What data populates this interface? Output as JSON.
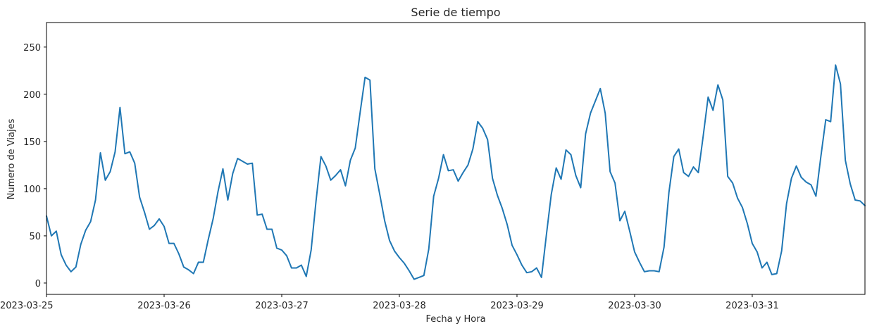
{
  "chart_data": {
    "type": "line",
    "title": "Serie de tiempo",
    "xlabel": "Fecha y Hora",
    "ylabel": "Numero de Viajes",
    "x_ticks": [
      "2023-03-25",
      "2023-03-26",
      "2023-03-27",
      "2023-03-28",
      "2023-03-29",
      "2023-03-30",
      "2023-03-31"
    ],
    "y_ticks": [
      0,
      50,
      100,
      150,
      200,
      250
    ],
    "xlim": [
      "2023-03-25 00:00",
      "2023-03-31 23:00"
    ],
    "ylim": [
      -12,
      276
    ],
    "grid": false,
    "color": "#1f77b4",
    "series": [
      {
        "x": [
          "2023-03-25 00:00",
          "2023-03-25 01:00",
          "2023-03-25 02:00",
          "2023-03-25 03:00",
          "2023-03-25 04:00",
          "2023-03-25 05:00",
          "2023-03-25 06:00",
          "2023-03-25 07:00",
          "2023-03-25 08:00",
          "2023-03-25 09:00",
          "2023-03-25 10:00",
          "2023-03-25 11:00",
          "2023-03-25 12:00",
          "2023-03-25 13:00",
          "2023-03-25 14:00",
          "2023-03-25 15:00",
          "2023-03-25 16:00",
          "2023-03-25 17:00",
          "2023-03-25 18:00",
          "2023-03-25 19:00",
          "2023-03-25 20:00",
          "2023-03-25 21:00",
          "2023-03-25 22:00",
          "2023-03-25 23:00",
          "2023-03-26 00:00",
          "2023-03-26 01:00",
          "2023-03-26 02:00",
          "2023-03-26 03:00",
          "2023-03-26 04:00",
          "2023-03-26 05:00",
          "2023-03-26 06:00",
          "2023-03-26 07:00",
          "2023-03-26 08:00",
          "2023-03-26 09:00",
          "2023-03-26 10:00",
          "2023-03-26 11:00",
          "2023-03-26 12:00",
          "2023-03-26 13:00",
          "2023-03-26 14:00",
          "2023-03-26 15:00",
          "2023-03-26 16:00",
          "2023-03-26 17:00",
          "2023-03-26 18:00",
          "2023-03-26 19:00",
          "2023-03-26 20:00",
          "2023-03-26 21:00",
          "2023-03-26 22:00",
          "2023-03-26 23:00",
          "2023-03-27 00:00",
          "2023-03-27 01:00",
          "2023-03-27 02:00",
          "2023-03-27 03:00",
          "2023-03-27 04:00",
          "2023-03-27 05:00",
          "2023-03-27 06:00",
          "2023-03-27 07:00",
          "2023-03-27 08:00",
          "2023-03-27 09:00",
          "2023-03-27 10:00",
          "2023-03-27 11:00",
          "2023-03-27 12:00",
          "2023-03-27 13:00",
          "2023-03-27 14:00",
          "2023-03-27 15:00",
          "2023-03-27 16:00",
          "2023-03-27 17:00",
          "2023-03-27 18:00",
          "2023-03-27 19:00",
          "2023-03-27 20:00",
          "2023-03-27 21:00",
          "2023-03-27 22:00",
          "2023-03-27 23:00",
          "2023-03-28 00:00",
          "2023-03-28 01:00",
          "2023-03-28 02:00",
          "2023-03-28 03:00",
          "2023-03-28 04:00",
          "2023-03-28 05:00",
          "2023-03-28 06:00",
          "2023-03-28 07:00",
          "2023-03-28 08:00",
          "2023-03-28 09:00",
          "2023-03-28 10:00",
          "2023-03-28 11:00",
          "2023-03-28 12:00",
          "2023-03-28 13:00",
          "2023-03-28 14:00",
          "2023-03-28 15:00",
          "2023-03-28 16:00",
          "2023-03-28 17:00",
          "2023-03-28 18:00",
          "2023-03-28 19:00",
          "2023-03-28 20:00",
          "2023-03-28 21:00",
          "2023-03-28 22:00",
          "2023-03-28 23:00",
          "2023-03-29 00:00",
          "2023-03-29 01:00",
          "2023-03-29 02:00",
          "2023-03-29 03:00",
          "2023-03-29 04:00",
          "2023-03-29 05:00",
          "2023-03-29 06:00",
          "2023-03-29 07:00",
          "2023-03-29 08:00",
          "2023-03-29 09:00",
          "2023-03-29 10:00",
          "2023-03-29 11:00",
          "2023-03-29 12:00",
          "2023-03-29 13:00",
          "2023-03-29 14:00",
          "2023-03-29 15:00",
          "2023-03-29 16:00",
          "2023-03-29 17:00",
          "2023-03-29 18:00",
          "2023-03-29 19:00",
          "2023-03-29 20:00",
          "2023-03-29 21:00",
          "2023-03-29 22:00",
          "2023-03-29 23:00",
          "2023-03-30 00:00",
          "2023-03-30 01:00",
          "2023-03-30 02:00",
          "2023-03-30 03:00",
          "2023-03-30 04:00",
          "2023-03-30 05:00",
          "2023-03-30 06:00",
          "2023-03-30 07:00",
          "2023-03-30 08:00",
          "2023-03-30 09:00",
          "2023-03-30 10:00",
          "2023-03-30 11:00",
          "2023-03-30 12:00",
          "2023-03-30 13:00",
          "2023-03-30 14:00",
          "2023-03-30 15:00",
          "2023-03-30 16:00",
          "2023-03-30 17:00",
          "2023-03-30 18:00",
          "2023-03-30 19:00",
          "2023-03-30 20:00",
          "2023-03-30 21:00",
          "2023-03-30 22:00",
          "2023-03-30 23:00",
          "2023-03-31 00:00",
          "2023-03-31 01:00",
          "2023-03-31 02:00",
          "2023-03-31 03:00",
          "2023-03-31 04:00",
          "2023-03-31 05:00",
          "2023-03-31 06:00",
          "2023-03-31 07:00",
          "2023-03-31 08:00",
          "2023-03-31 09:00",
          "2023-03-31 10:00",
          "2023-03-31 11:00",
          "2023-03-31 12:00",
          "2023-03-31 13:00",
          "2023-03-31 14:00",
          "2023-03-31 15:00",
          "2023-03-31 16:00",
          "2023-03-31 17:00",
          "2023-03-31 18:00",
          "2023-03-31 19:00",
          "2023-03-31 20:00",
          "2023-03-31 21:00",
          "2023-03-31 22:00",
          "2023-03-31 23:00"
        ],
        "values": [
          71,
          50,
          55,
          30,
          19,
          12,
          17,
          41,
          56,
          65,
          88,
          138,
          109,
          118,
          139,
          186,
          137,
          139,
          127,
          91,
          75,
          57,
          61,
          68,
          60,
          42,
          42,
          31,
          17,
          14,
          10,
          22,
          22,
          46,
          68,
          97,
          121,
          88,
          116,
          132,
          129,
          126,
          127,
          72,
          73,
          57,
          57,
          37,
          35,
          29,
          16,
          16,
          19,
          7,
          35,
          87,
          134,
          124,
          109,
          114,
          120,
          103,
          130,
          143,
          181,
          218,
          215,
          121,
          94,
          66,
          45,
          34,
          27,
          21,
          13,
          4,
          6,
          8,
          36,
          92,
          111,
          136,
          119,
          120,
          108,
          117,
          125,
          142,
          171,
          164,
          152,
          111,
          93,
          79,
          62,
          40,
          30,
          19,
          11,
          12,
          16,
          6,
          51,
          94,
          122,
          110,
          141,
          136,
          114,
          101,
          158,
          180,
          193,
          206,
          180,
          118,
          106,
          66,
          76,
          55,
          33,
          22,
          12,
          13,
          13,
          12,
          38,
          96,
          134,
          142,
          117,
          113,
          123,
          117,
          156,
          197,
          183,
          210,
          194,
          113,
          106,
          90,
          80,
          63,
          42,
          33,
          16,
          22,
          9,
          10,
          34,
          84,
          111,
          124,
          112,
          107,
          104,
          92,
          134,
          173,
          171,
          231,
          211,
          130,
          105,
          88,
          87,
          82
        ]
      }
    ]
  }
}
